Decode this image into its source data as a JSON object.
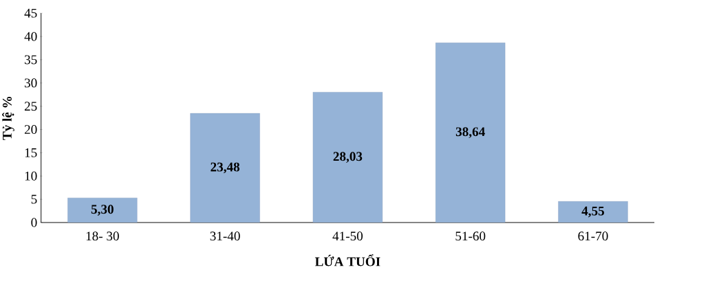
{
  "chart_data": {
    "type": "bar",
    "xlabel": "LỨA TUỔI",
    "ylabel": "Tỷ lệ %",
    "categories": [
      "18- 30",
      "31-40",
      "41-50",
      "51-60",
      "61-70"
    ],
    "values": [
      5.3,
      23.48,
      28.03,
      38.64,
      4.55
    ],
    "value_labels": [
      "5,30",
      "23,48",
      "28,03",
      "38,64",
      "4,55"
    ],
    "color": "#95b3d7",
    "ylim": [
      0,
      45
    ],
    "yticks": [
      0,
      5,
      10,
      15,
      20,
      25,
      30,
      35,
      40,
      45
    ],
    "grid": false
  }
}
